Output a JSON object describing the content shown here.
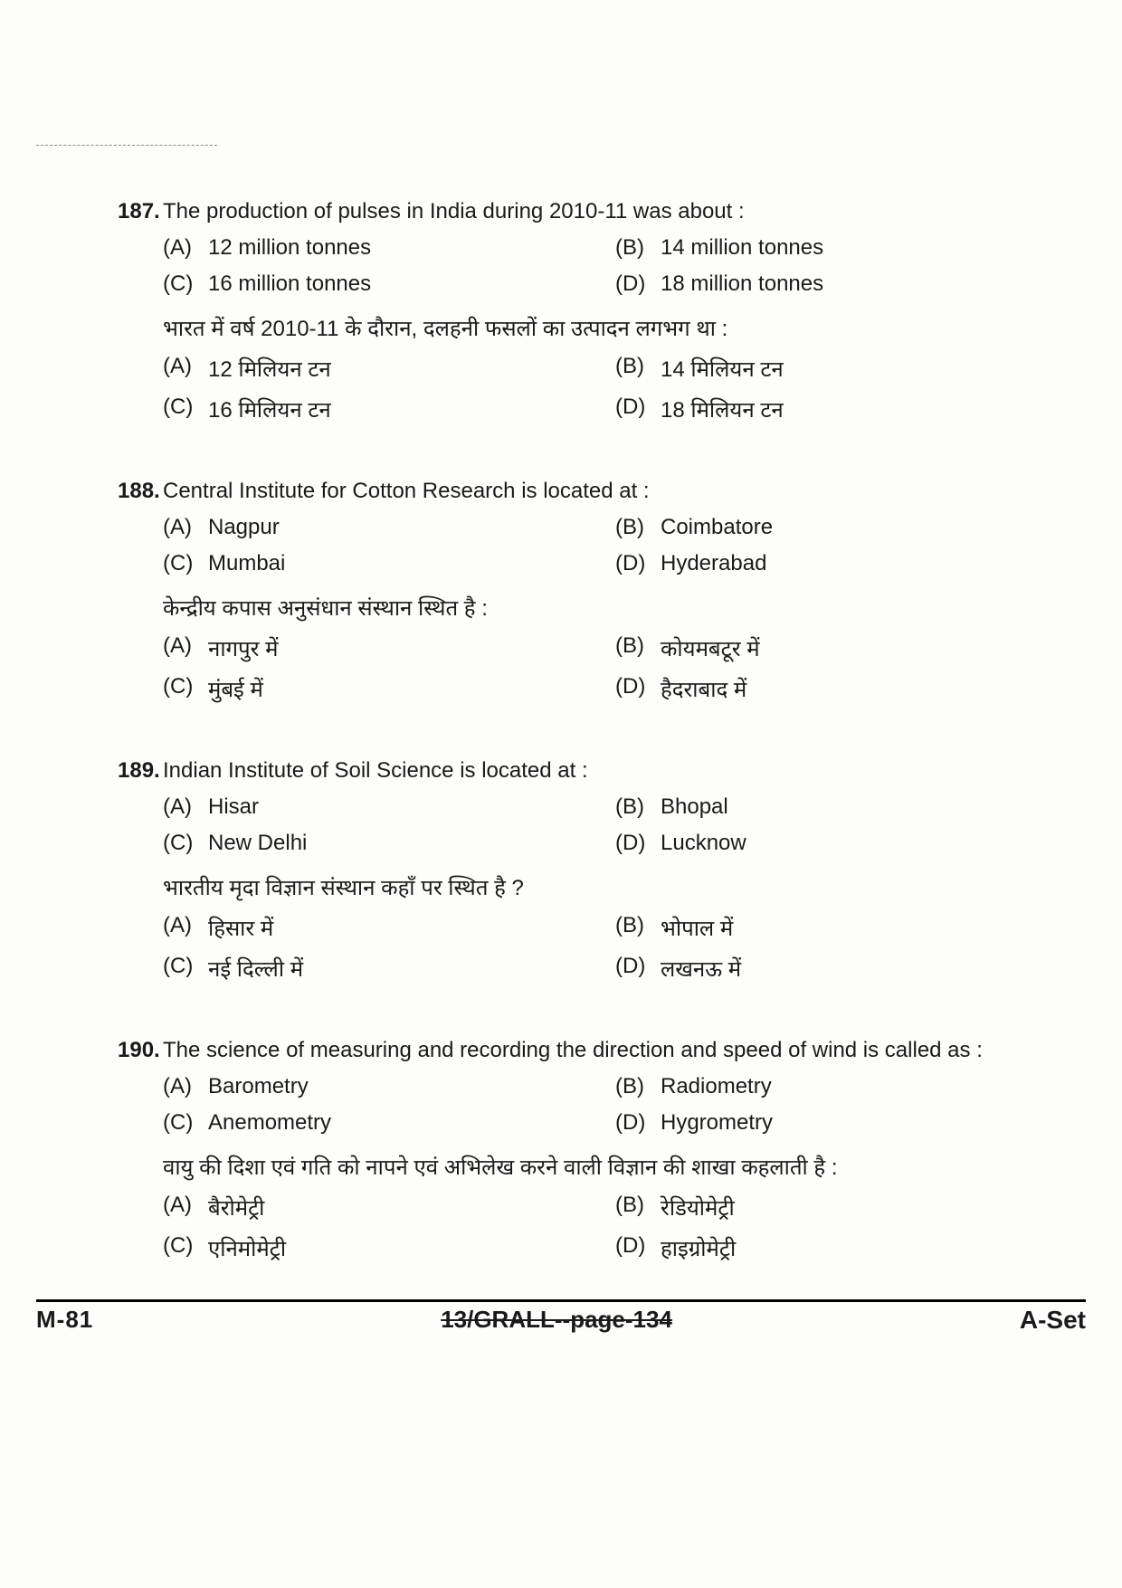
{
  "questions": [
    {
      "number": "187.",
      "text_en": "The production of pulses in India during 2010-11 was about :",
      "text_hi": "भारत में वर्ष 2010-11 के दौरान, दलहनी फसलों का उत्पादन लगभग था :",
      "options_en": {
        "A": "12 million tonnes",
        "B": "14 million tonnes",
        "C": "16 million tonnes",
        "D": "18 million tonnes"
      },
      "options_hi": {
        "A": "12 मिलियन टन",
        "B": "14 मिलियन टन",
        "C": "16 मिलियन टन",
        "D": "18 मिलियन टन"
      }
    },
    {
      "number": "188.",
      "text_en": "Central Institute for Cotton Research is located at :",
      "text_hi": "केन्द्रीय कपास अनुसंधान संस्थान स्थित है :",
      "options_en": {
        "A": "Nagpur",
        "B": "Coimbatore",
        "C": "Mumbai",
        "D": "Hyderabad"
      },
      "options_hi": {
        "A": "नागपुर में",
        "B": "कोयमबटूर में",
        "C": "मुंबई में",
        "D": "हैदराबाद में"
      }
    },
    {
      "number": "189.",
      "text_en": "Indian Institute of Soil Science is located at :",
      "text_hi": "भारतीय मृदा विज्ञान संस्थान कहाँ पर स्थित है ?",
      "options_en": {
        "A": "Hisar",
        "B": "Bhopal",
        "C": "New Delhi",
        "D": "Lucknow"
      },
      "options_hi": {
        "A": "हिसार में",
        "B": "भोपाल में",
        "C": "नई दिल्ली में",
        "D": "लखनऊ में"
      }
    },
    {
      "number": "190.",
      "text_en": "The science of measuring and recording the direction and speed of wind is called as :",
      "text_hi": "वायु की दिशा एवं गति को नापने एवं अभिलेख करने वाली विज्ञान की शाखा कहलाती है :",
      "options_en": {
        "A": "Barometry",
        "B": "Radiometry",
        "C": "Anemometry",
        "D": "Hygrometry"
      },
      "options_hi": {
        "A": "बैरोमेट्री",
        "B": "रेडियोमेट्री",
        "C": "एनिमोमेट्री",
        "D": "हाइग्रोमेट्री"
      }
    }
  ],
  "labels": {
    "A": "(A)",
    "B": "(B)",
    "C": "(C)",
    "D": "(D)"
  },
  "footer": {
    "left": "M-81",
    "center": "13/GRALL--page-134",
    "right": "A-Set"
  }
}
